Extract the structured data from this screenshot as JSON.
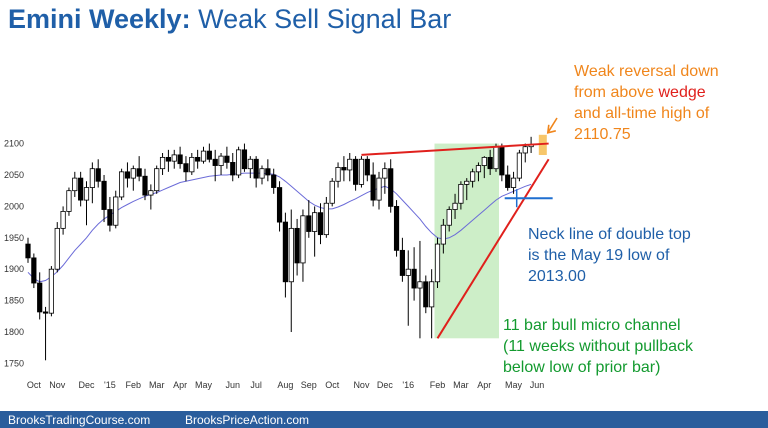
{
  "title": {
    "prefix": "Emini Weekly:",
    "rest": "Weak Sell Signal Bar"
  },
  "footer": {
    "left": "BrooksTradingCourse.com",
    "right": "BrooksPriceAction.com"
  },
  "annotations": {
    "orange": [
      "Weak reversal down",
      "from above ",
      "wedge",
      "and all-time high of",
      "2110.75"
    ],
    "blue": [
      "Neck line of double top",
      "is the May 19 low of",
      "2013.00"
    ],
    "green": [
      "11 bar bull micro channel",
      "(11 weeks without pullback",
      "below low of prior bar)"
    ]
  },
  "colors": {
    "bull": "#ffffff",
    "bear": "#000000",
    "ma": "#6b6bd8",
    "wedge_line": "#e0201c",
    "neckline": "#1f6fd0",
    "channel_shade": "#cdeec8",
    "signal_highlight": "#f7c66a",
    "orange": "#f0861c",
    "footer_bg": "#2a5d9c"
  },
  "chart_data": {
    "type": "candlestick",
    "title": "Emini Weekly: Weak Sell Signal Bar",
    "ylim": [
      1730,
      2120
    ],
    "yticks": [
      1750,
      1800,
      1850,
      1900,
      1950,
      2000,
      2050,
      2100
    ],
    "x_tick_labels": [
      {
        "label": "Oct",
        "bar": 1
      },
      {
        "label": "Nov",
        "bar": 5
      },
      {
        "label": "Dec",
        "bar": 10
      },
      {
        "label": "'15",
        "bar": 14
      },
      {
        "label": "Feb",
        "bar": 18
      },
      {
        "label": "Mar",
        "bar": 22
      },
      {
        "label": "Apr",
        "bar": 26
      },
      {
        "label": "May",
        "bar": 30
      },
      {
        "label": "Jun",
        "bar": 35
      },
      {
        "label": "Jul",
        "bar": 39
      },
      {
        "label": "Aug",
        "bar": 44
      },
      {
        "label": "Sep",
        "bar": 48
      },
      {
        "label": "Oct",
        "bar": 52
      },
      {
        "label": "Nov",
        "bar": 57
      },
      {
        "label": "Dec",
        "bar": 61
      },
      {
        "label": "'16",
        "bar": 65
      },
      {
        "label": "Feb",
        "bar": 70
      },
      {
        "label": "Mar",
        "bar": 74
      },
      {
        "label": "Apr",
        "bar": 78
      },
      {
        "label": "May",
        "bar": 83
      },
      {
        "label": "Jun",
        "bar": 87
      }
    ],
    "candles": [
      [
        1940,
        1950,
        1910,
        1918
      ],
      [
        1918,
        1925,
        1870,
        1878
      ],
      [
        1878,
        1895,
        1820,
        1832
      ],
      [
        1832,
        1840,
        1755,
        1830
      ],
      [
        1830,
        1905,
        1825,
        1900
      ],
      [
        1900,
        1975,
        1895,
        1965
      ],
      [
        1965,
        2000,
        1955,
        1992
      ],
      [
        1992,
        2030,
        1985,
        2025
      ],
      [
        2025,
        2055,
        2015,
        2045
      ],
      [
        2045,
        2055,
        2000,
        2010
      ],
      [
        2010,
        2040,
        1970,
        2030
      ],
      [
        2030,
        2070,
        2005,
        2060
      ],
      [
        2060,
        2075,
        2030,
        2040
      ],
      [
        2040,
        2050,
        1975,
        1995
      ],
      [
        1995,
        2015,
        1960,
        1970
      ],
      [
        1970,
        2025,
        1965,
        2015
      ],
      [
        2015,
        2060,
        2010,
        2055
      ],
      [
        2055,
        2070,
        2030,
        2045
      ],
      [
        2045,
        2065,
        2025,
        2060
      ],
      [
        2060,
        2080,
        2040,
        2048
      ],
      [
        2048,
        2060,
        2010,
        2018
      ],
      [
        2018,
        2035,
        1995,
        2025
      ],
      [
        2025,
        2065,
        2020,
        2060
      ],
      [
        2060,
        2085,
        2050,
        2078
      ],
      [
        2078,
        2090,
        2055,
        2072
      ],
      [
        2072,
        2090,
        2060,
        2082
      ],
      [
        2082,
        2095,
        2060,
        2068
      ],
      [
        2068,
        2080,
        2040,
        2055
      ],
      [
        2055,
        2085,
        2050,
        2078
      ],
      [
        2078,
        2090,
        2060,
        2072
      ],
      [
        2072,
        2095,
        2068,
        2088
      ],
      [
        2088,
        2100,
        2070,
        2075
      ],
      [
        2075,
        2090,
        2040,
        2065
      ],
      [
        2065,
        2085,
        2050,
        2080
      ],
      [
        2080,
        2095,
        2060,
        2070
      ],
      [
        2070,
        2085,
        2040,
        2050
      ],
      [
        2050,
        2095,
        2045,
        2090
      ],
      [
        2090,
        2100,
        2055,
        2060
      ],
      [
        2060,
        2080,
        2045,
        2075
      ],
      [
        2075,
        2080,
        2030,
        2045
      ],
      [
        2045,
        2065,
        2035,
        2060
      ],
      [
        2060,
        2075,
        2040,
        2050
      ],
      [
        2050,
        2060,
        2020,
        2030
      ],
      [
        2030,
        2040,
        1960,
        1975
      ],
      [
        1975,
        1990,
        1855,
        1880
      ],
      [
        1880,
        1995,
        1800,
        1965
      ],
      [
        1965,
        1980,
        1890,
        1910
      ],
      [
        1910,
        1995,
        1880,
        1985
      ],
      [
        1985,
        2010,
        1950,
        1960
      ],
      [
        1960,
        2000,
        1920,
        1990
      ],
      [
        1990,
        2005,
        1940,
        1955
      ],
      [
        1955,
        2015,
        1950,
        2005
      ],
      [
        2005,
        2045,
        2000,
        2040
      ],
      [
        2040,
        2070,
        2030,
        2062
      ],
      [
        2062,
        2080,
        2040,
        2058
      ],
      [
        2058,
        2085,
        2040,
        2075
      ],
      [
        2075,
        2080,
        2025,
        2035
      ],
      [
        2035,
        2080,
        2030,
        2075
      ],
      [
        2075,
        2080,
        2040,
        2050
      ],
      [
        2050,
        2070,
        2000,
        2010
      ],
      [
        2010,
        2055,
        1995,
        2045
      ],
      [
        2045,
        2070,
        2020,
        2060
      ],
      [
        2060,
        2075,
        1990,
        2000
      ],
      [
        2000,
        2010,
        1920,
        1930
      ],
      [
        1930,
        1950,
        1880,
        1890
      ],
      [
        1890,
        1930,
        1810,
        1900
      ],
      [
        1900,
        1935,
        1850,
        1870
      ],
      [
        1870,
        1945,
        1790,
        1880
      ],
      [
        1880,
        1890,
        1830,
        1840
      ],
      [
        1840,
        1900,
        1790,
        1880
      ],
      [
        1880,
        1950,
        1870,
        1940
      ],
      [
        1940,
        1980,
        1925,
        1970
      ],
      [
        1970,
        2000,
        1960,
        1995
      ],
      [
        1995,
        2020,
        1980,
        2005
      ],
      [
        2005,
        2040,
        1995,
        2035
      ],
      [
        2035,
        2045,
        2010,
        2040
      ],
      [
        2040,
        2060,
        2030,
        2055
      ],
      [
        2055,
        2070,
        2040,
        2065
      ],
      [
        2065,
        2080,
        2045,
        2078
      ],
      [
        2078,
        2090,
        2050,
        2060
      ],
      [
        2060,
        2100,
        2055,
        2095
      ],
      [
        2095,
        2100,
        2040,
        2050
      ],
      [
        2050,
        2065,
        2025,
        2030
      ],
      [
        2030,
        2055,
        2020,
        2045
      ],
      [
        2045,
        2090,
        2040,
        2085
      ],
      [
        2085,
        2100,
        2070,
        2095
      ],
      [
        2095,
        2110.75,
        2085,
        2098
      ]
    ],
    "moving_average": [
      1895,
      1885,
      1880,
      1882,
      1888,
      1896,
      1906,
      1918,
      1930,
      1940,
      1950,
      1962,
      1972,
      1980,
      1986,
      1992,
      1998,
      2003,
      2008,
      2012,
      2016,
      2019,
      2022,
      2026,
      2030,
      2034,
      2038,
      2040,
      2042,
      2044,
      2046,
      2048,
      2049,
      2050,
      2050,
      2051,
      2052,
      2053,
      2053,
      2053,
      2053,
      2052,
      2051,
      2047,
      2040,
      2032,
      2024,
      2016,
      2008,
      2002,
      1998,
      1996,
      1996,
      1999,
      2003,
      2008,
      2012,
      2017,
      2022,
      2026,
      2029,
      2032,
      2028,
      2020,
      2010,
      2000,
      1990,
      1980,
      1968,
      1958,
      1950,
      1948,
      1950,
      1955,
      1962,
      1970,
      1978,
      1986,
      1994,
      2002,
      2010,
      2016,
      2020,
      2024,
      2028,
      2032,
      2035
    ],
    "overlays": {
      "wedge_top": {
        "from": [
          57,
          2082
        ],
        "to": [
          89,
          2100
        ]
      },
      "bull_channel_line": {
        "from": [
          70,
          1790
        ],
        "to": [
          89,
          2075
        ]
      },
      "neckline": {
        "from": [
          82,
          2013
        ],
        "to": [
          89,
          2013
        ]
      },
      "channel_highlight": {
        "from_bar": 70,
        "to_bar": 80,
        "low": 1790,
        "high": 2100
      },
      "signal_bar_highlight": {
        "bar": 88,
        "low": 2085,
        "high": 2110.75
      }
    }
  }
}
